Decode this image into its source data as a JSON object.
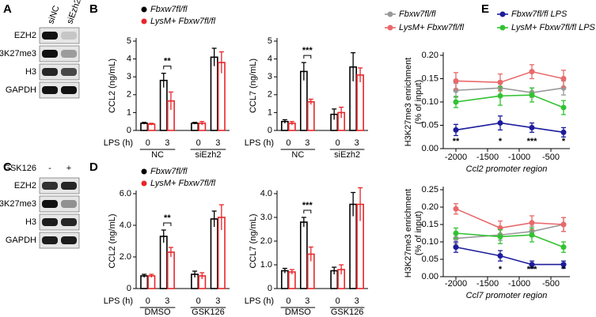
{
  "panels": [
    "A",
    "B",
    "C",
    "D",
    "E"
  ],
  "blots": [
    {
      "columns": [
        "siNC",
        "siEzh2"
      ],
      "rows": [
        "EZH2",
        "H3K27me3",
        "H3",
        "GAPDH"
      ]
    },
    {
      "treatment": "GSK126",
      "columns": [
        "-",
        "+"
      ],
      "rows": [
        "EZH2",
        "H3K27me3",
        "H3",
        "GAPDH"
      ]
    }
  ],
  "chart_data": [
    {
      "type": "bar",
      "ylabel": "CCL2 (ng/mL)",
      "xlabel": "LPS (h)",
      "categories": [
        "0",
        "3",
        "0",
        "3"
      ],
      "groups": [
        "NC",
        "siEzh2"
      ],
      "ylim": [
        0,
        5
      ],
      "yticks": [
        0,
        1,
        2,
        3,
        4,
        5
      ],
      "series": [
        {
          "name": "Fbxw7fl/fl",
          "color": "#000000",
          "values": [
            0.4,
            2.8,
            0.4,
            4.1
          ],
          "errors": [
            0.05,
            0.4,
            0.05,
            0.5
          ]
        },
        {
          "name": "LysM+ Fbxw7fl/fl",
          "color": "#e8262a",
          "values": [
            0.35,
            1.65,
            0.4,
            3.8
          ],
          "errors": [
            0.05,
            0.5,
            0.1,
            0.6
          ]
        }
      ],
      "annotations": [
        "**"
      ]
    },
    {
      "type": "bar",
      "ylabel": "CCL7 (ng/mL)",
      "xlabel": "LPS (h)",
      "categories": [
        "0",
        "3",
        "0",
        "3"
      ],
      "groups": [
        "NC",
        "siEzh2"
      ],
      "ylim": [
        0,
        5
      ],
      "yticks": [
        0,
        1,
        2,
        3,
        4,
        5
      ],
      "series": [
        {
          "color": "#000000",
          "values": [
            0.5,
            3.3,
            0.9,
            3.55
          ],
          "errors": [
            0.1,
            0.5,
            0.3,
            0.8
          ]
        },
        {
          "color": "#e8262a",
          "values": [
            0.4,
            1.6,
            1.0,
            3.1
          ],
          "errors": [
            0.1,
            0.15,
            0.3,
            0.4
          ]
        }
      ],
      "annotations": [
        "***"
      ]
    },
    {
      "type": "bar",
      "ylabel": "CCL2 (ng/mL)",
      "xlabel": "LPS (h)",
      "categories": [
        "0",
        "3",
        "0",
        "3"
      ],
      "groups": [
        "DMSO",
        "GSK126"
      ],
      "ylim": [
        0,
        6
      ],
      "yticks": [
        0,
        {
          "value": 2,
          "label": "2.0"
        },
        {
          "value": 4,
          "label": "4.0"
        },
        {
          "value": 6,
          "label": "6.0"
        }
      ],
      "series": [
        {
          "name": "Fbxw7fl/fl",
          "color": "#000000",
          "values": [
            0.8,
            3.3,
            0.9,
            4.4
          ],
          "errors": [
            0.1,
            0.4,
            0.2,
            0.5
          ]
        },
        {
          "name": "LysM+ Fbxw7fl/fl",
          "color": "#e8262a",
          "values": [
            0.8,
            2.3,
            0.8,
            4.5
          ],
          "errors": [
            0.1,
            0.3,
            0.2,
            0.8
          ]
        }
      ],
      "annotations": [
        "**"
      ]
    },
    {
      "type": "bar",
      "ylabel": "CCL7 (ng/mL)",
      "xlabel": "LPS (h)",
      "categories": [
        "0",
        "3",
        "0",
        "3"
      ],
      "groups": [
        "DMSO",
        "GSK126"
      ],
      "ylim": [
        0,
        4
      ],
      "yticks": [
        0,
        {
          "value": 1,
          "label": "1.0"
        },
        {
          "value": 2,
          "label": "2.0"
        },
        {
          "value": 3,
          "label": "3.0"
        },
        {
          "value": 4,
          "label": "4.0"
        }
      ],
      "series": [
        {
          "color": "#000000",
          "values": [
            0.75,
            2.8,
            0.75,
            3.55
          ],
          "errors": [
            0.1,
            0.2,
            0.15,
            0.5
          ]
        },
        {
          "color": "#e8262a",
          "values": [
            0.7,
            1.45,
            0.8,
            3.55
          ],
          "errors": [
            0.1,
            0.3,
            0.2,
            0.7
          ]
        }
      ],
      "annotations": [
        "***"
      ]
    },
    {
      "type": "line",
      "ylabel": [
        "H3K27me3 enrichment",
        "(% of input)"
      ],
      "xlabel": "Ccl2 promoter region",
      "x": [
        -2000,
        -1300,
        -800,
        -300
      ],
      "xlim": [
        -2200,
        -200
      ],
      "xticks": [
        -2000,
        -1500,
        -1000,
        -500
      ],
      "ylim": [
        0,
        0.2
      ],
      "yticks": [
        {
          "value": 0,
          "label": "0.00"
        },
        {
          "value": 0.05,
          "label": "0.05"
        },
        {
          "value": 0.1,
          "label": "0.10"
        },
        {
          "value": 0.15,
          "label": "0.15"
        },
        {
          "value": 0.2,
          "label": "0.20"
        }
      ],
      "series": [
        {
          "name": "Fbxw7fl/fl",
          "color": "#999999",
          "values": [
            0.125,
            0.13,
            0.12,
            0.13
          ],
          "errors": [
            0.015,
            0.015,
            0.01,
            0.015
          ]
        },
        {
          "name": "LysM+ Fbxw7fl/fl",
          "color": "#e8696b",
          "values": [
            0.145,
            0.142,
            0.165,
            0.15
          ],
          "errors": [
            0.018,
            0.018,
            0.015,
            0.018
          ]
        },
        {
          "name": "Fbxw7fl/fl LPS",
          "color": "#1c1c9c",
          "values": [
            0.04,
            0.055,
            0.045,
            0.035
          ],
          "errors": [
            0.012,
            0.015,
            0.01,
            0.01
          ]
        },
        {
          "name": "LysM+ Fbxw7fl/fl LPS",
          "color": "#33c233",
          "values": [
            0.1,
            0.113,
            0.115,
            0.088
          ],
          "errors": [
            0.012,
            0.02,
            0.015,
            0.015
          ]
        }
      ],
      "annotations": [
        {
          "text": "**",
          "x": -2000
        },
        {
          "text": "*",
          "x": -1300
        },
        {
          "text": "***",
          "x": -800
        },
        {
          "text": "*",
          "x": -300
        }
      ]
    },
    {
      "type": "line",
      "xlabel": "Ccl7 promoter region",
      "ylabel": [
        "H3K27me3 enrichment",
        "(% of input)"
      ],
      "x": [
        -2000,
        -1300,
        -800,
        -300
      ],
      "xlim": [
        -2200,
        -200
      ],
      "xticks": [
        -2000,
        -1500,
        -1000,
        -500
      ],
      "ylim": [
        0,
        0.25
      ],
      "yticks": [
        {
          "value": 0,
          "label": "0.00"
        },
        {
          "value": 0.05,
          "label": "0.05"
        },
        {
          "value": 0.1,
          "label": "0.10"
        },
        {
          "value": 0.15,
          "label": "0.15"
        },
        {
          "value": 0.2,
          "label": "0.20"
        },
        {
          "value": 0.25,
          "label": "0.25"
        }
      ],
      "series": [
        {
          "color": "#999999",
          "values": [
            0.11,
            0.12,
            0.13,
            0.15
          ],
          "errors": [
            0.015,
            0.015,
            0.015,
            0.02
          ]
        },
        {
          "color": "#e8696b",
          "values": [
            0.195,
            0.14,
            0.155,
            0.15
          ],
          "errors": [
            0.015,
            0.02,
            0.02,
            0.02
          ]
        },
        {
          "color": "#1c1c9c",
          "values": [
            0.085,
            0.06,
            0.035,
            0.035
          ],
          "errors": [
            0.015,
            0.015,
            0.01,
            0.01
          ]
        },
        {
          "color": "#33c233",
          "values": [
            0.125,
            0.115,
            0.12,
            0.085
          ],
          "errors": [
            0.015,
            0.02,
            0.02,
            0.015
          ]
        }
      ],
      "annotations": [
        {
          "text": "*",
          "x": -1300
        },
        {
          "text": "***",
          "x": -800
        },
        {
          "text": "*",
          "x": -300
        }
      ]
    }
  ]
}
